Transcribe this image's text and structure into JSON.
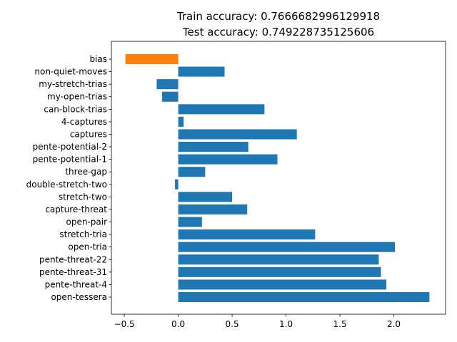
{
  "chart_data": {
    "type": "bar",
    "orientation": "horizontal",
    "title": [
      "Train accuracy: 0.7666682996129918",
      "Test accuracy: 0.749228735125606"
    ],
    "xlabel": "",
    "ylabel": "",
    "grid": false,
    "xlim": [
      -0.62,
      2.48
    ],
    "xticks": [
      -0.5,
      0.0,
      0.5,
      1.0,
      1.5,
      2.0
    ],
    "xtick_labels": [
      "−0.5",
      "0.0",
      "0.5",
      "1.0",
      "1.5",
      "2.0"
    ],
    "colors": {
      "default": "#1f77b4",
      "bias": "#ff7f0e"
    },
    "categories": [
      "bias",
      "non-quiet-moves",
      "my-stretch-trias",
      "my-open-trias",
      "can-block-trias",
      "4-captures",
      "captures",
      "pente-potential-2",
      "pente-potential-1",
      "three-gap",
      "double-stretch-two",
      "stretch-two",
      "capture-threat",
      "open-pair",
      "stretch-tria",
      "open-tria",
      "pente-threat-22",
      "pente-threat-31",
      "pente-threat-4",
      "open-tessera"
    ],
    "values": [
      -0.49,
      0.43,
      -0.2,
      -0.15,
      0.8,
      0.05,
      1.1,
      0.65,
      0.92,
      0.25,
      -0.03,
      0.5,
      0.64,
      0.22,
      1.27,
      2.01,
      1.86,
      1.88,
      1.93,
      2.33
    ]
  }
}
